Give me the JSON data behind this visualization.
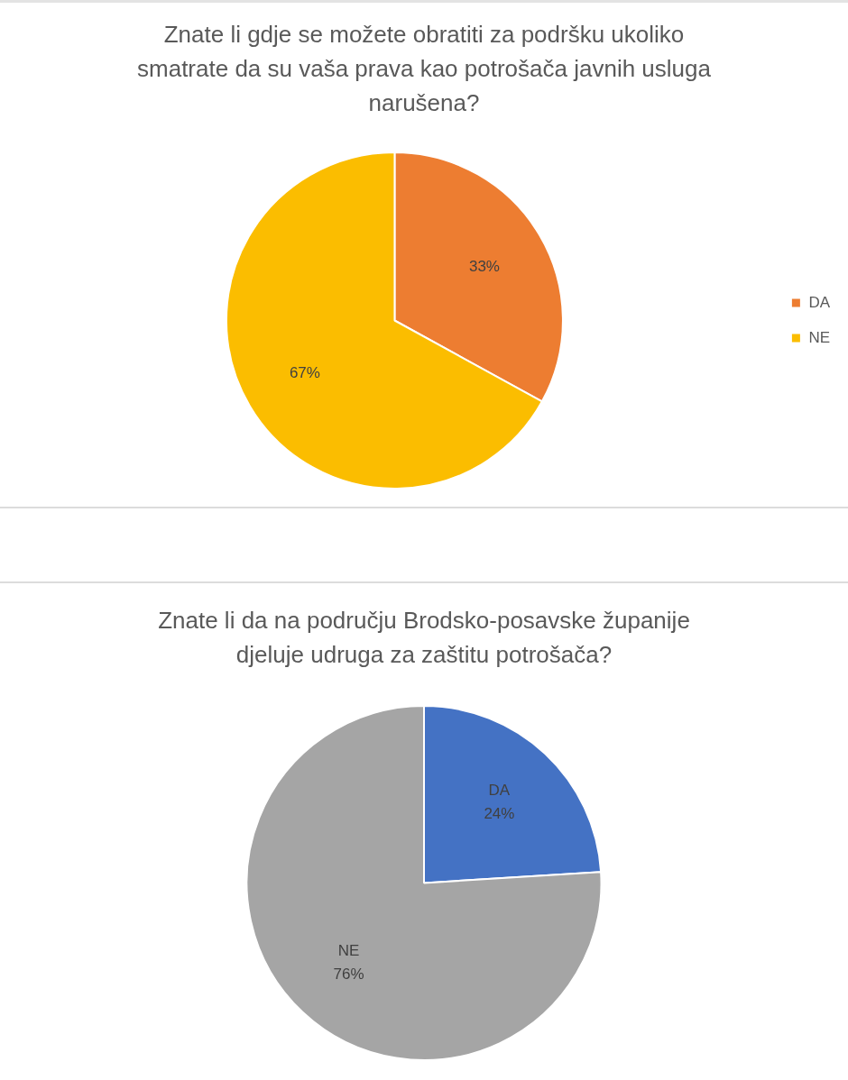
{
  "chart_data": [
    {
      "type": "pie",
      "title": "Znate li gdje se možete obratiti za podršku ukoliko smatrate da su vaša prava kao potrošača javnih usluga narušena?",
      "categories": [
        "DA",
        "NE"
      ],
      "values": [
        33,
        67
      ],
      "colors": [
        "#ed7d31",
        "#fbbd00"
      ],
      "value_labels": [
        "33%",
        "67%"
      ],
      "legend": "right"
    },
    {
      "type": "pie",
      "title": "Znate li da na području Brodsko-posavske županije djeluje udruga za zaštitu potrošača?",
      "categories": [
        "DA",
        "NE"
      ],
      "values": [
        24,
        76
      ],
      "colors": [
        "#4472c4",
        "#a5a5a5"
      ],
      "value_labels": [
        "24%",
        "76%"
      ],
      "legend": false
    }
  ]
}
